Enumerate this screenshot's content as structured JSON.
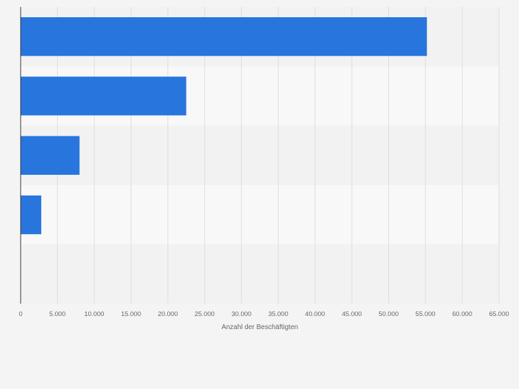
{
  "chart_data": {
    "type": "bar",
    "orientation": "horizontal",
    "title": "",
    "xlabel": "Anzahl der Beschäftigten",
    "ylabel": "",
    "categories": [
      "",
      "",
      "",
      "",
      ""
    ],
    "values": [
      55200,
      22500,
      8000,
      2800,
      0
    ],
    "xlim": [
      0,
      65000
    ],
    "xticks": [
      0,
      5000,
      10000,
      15000,
      20000,
      25000,
      30000,
      35000,
      40000,
      45000,
      50000,
      55000,
      60000,
      65000
    ],
    "xtick_labels": [
      "0",
      "5.000",
      "10.000",
      "15.000",
      "20.000",
      "25.000",
      "30.000",
      "35.000",
      "40.000",
      "45.000",
      "50.000",
      "55.000",
      "60.000",
      "65.000"
    ],
    "grid": true,
    "legend": "none",
    "colors": {
      "bar": "#2876dd",
      "band_dark": "#f2f2f2",
      "band_light": "#f8f8f8",
      "grid": "#dddddd",
      "axis": "#333333",
      "text": "#666666"
    }
  }
}
